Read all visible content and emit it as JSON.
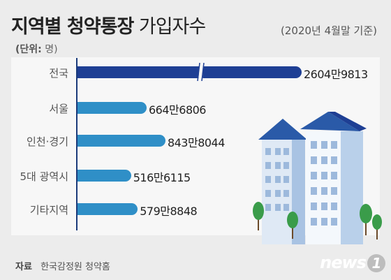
{
  "title_bold": "지역별 청약통장",
  "title_light": "가입자수",
  "date_note": "(2020년 4월말 기준)",
  "unit_label": "(단위:",
  "unit_value": "명)",
  "footer_label": "자료",
  "footer_source": "한국감정원 청약홈",
  "logo_text": "news",
  "logo_number": "1",
  "colors": {
    "main_bar": "#1e3f94",
    "sub_bar": "#2f8fc7",
    "background": "#ececec"
  },
  "chart_data": {
    "type": "bar",
    "orientation": "horizontal",
    "title": "지역별 청약통장 가입자수",
    "unit": "명",
    "axis_break": true,
    "categories": [
      "전국",
      "서울",
      "인천·경기",
      "5대 광역시",
      "기타지역"
    ],
    "values": [
      26049813,
      6646806,
      8438044,
      5166115,
      5798848
    ],
    "value_labels": [
      "2604만9813",
      "664만6806",
      "843만8044",
      "516만6115",
      "579만8848"
    ]
  }
}
